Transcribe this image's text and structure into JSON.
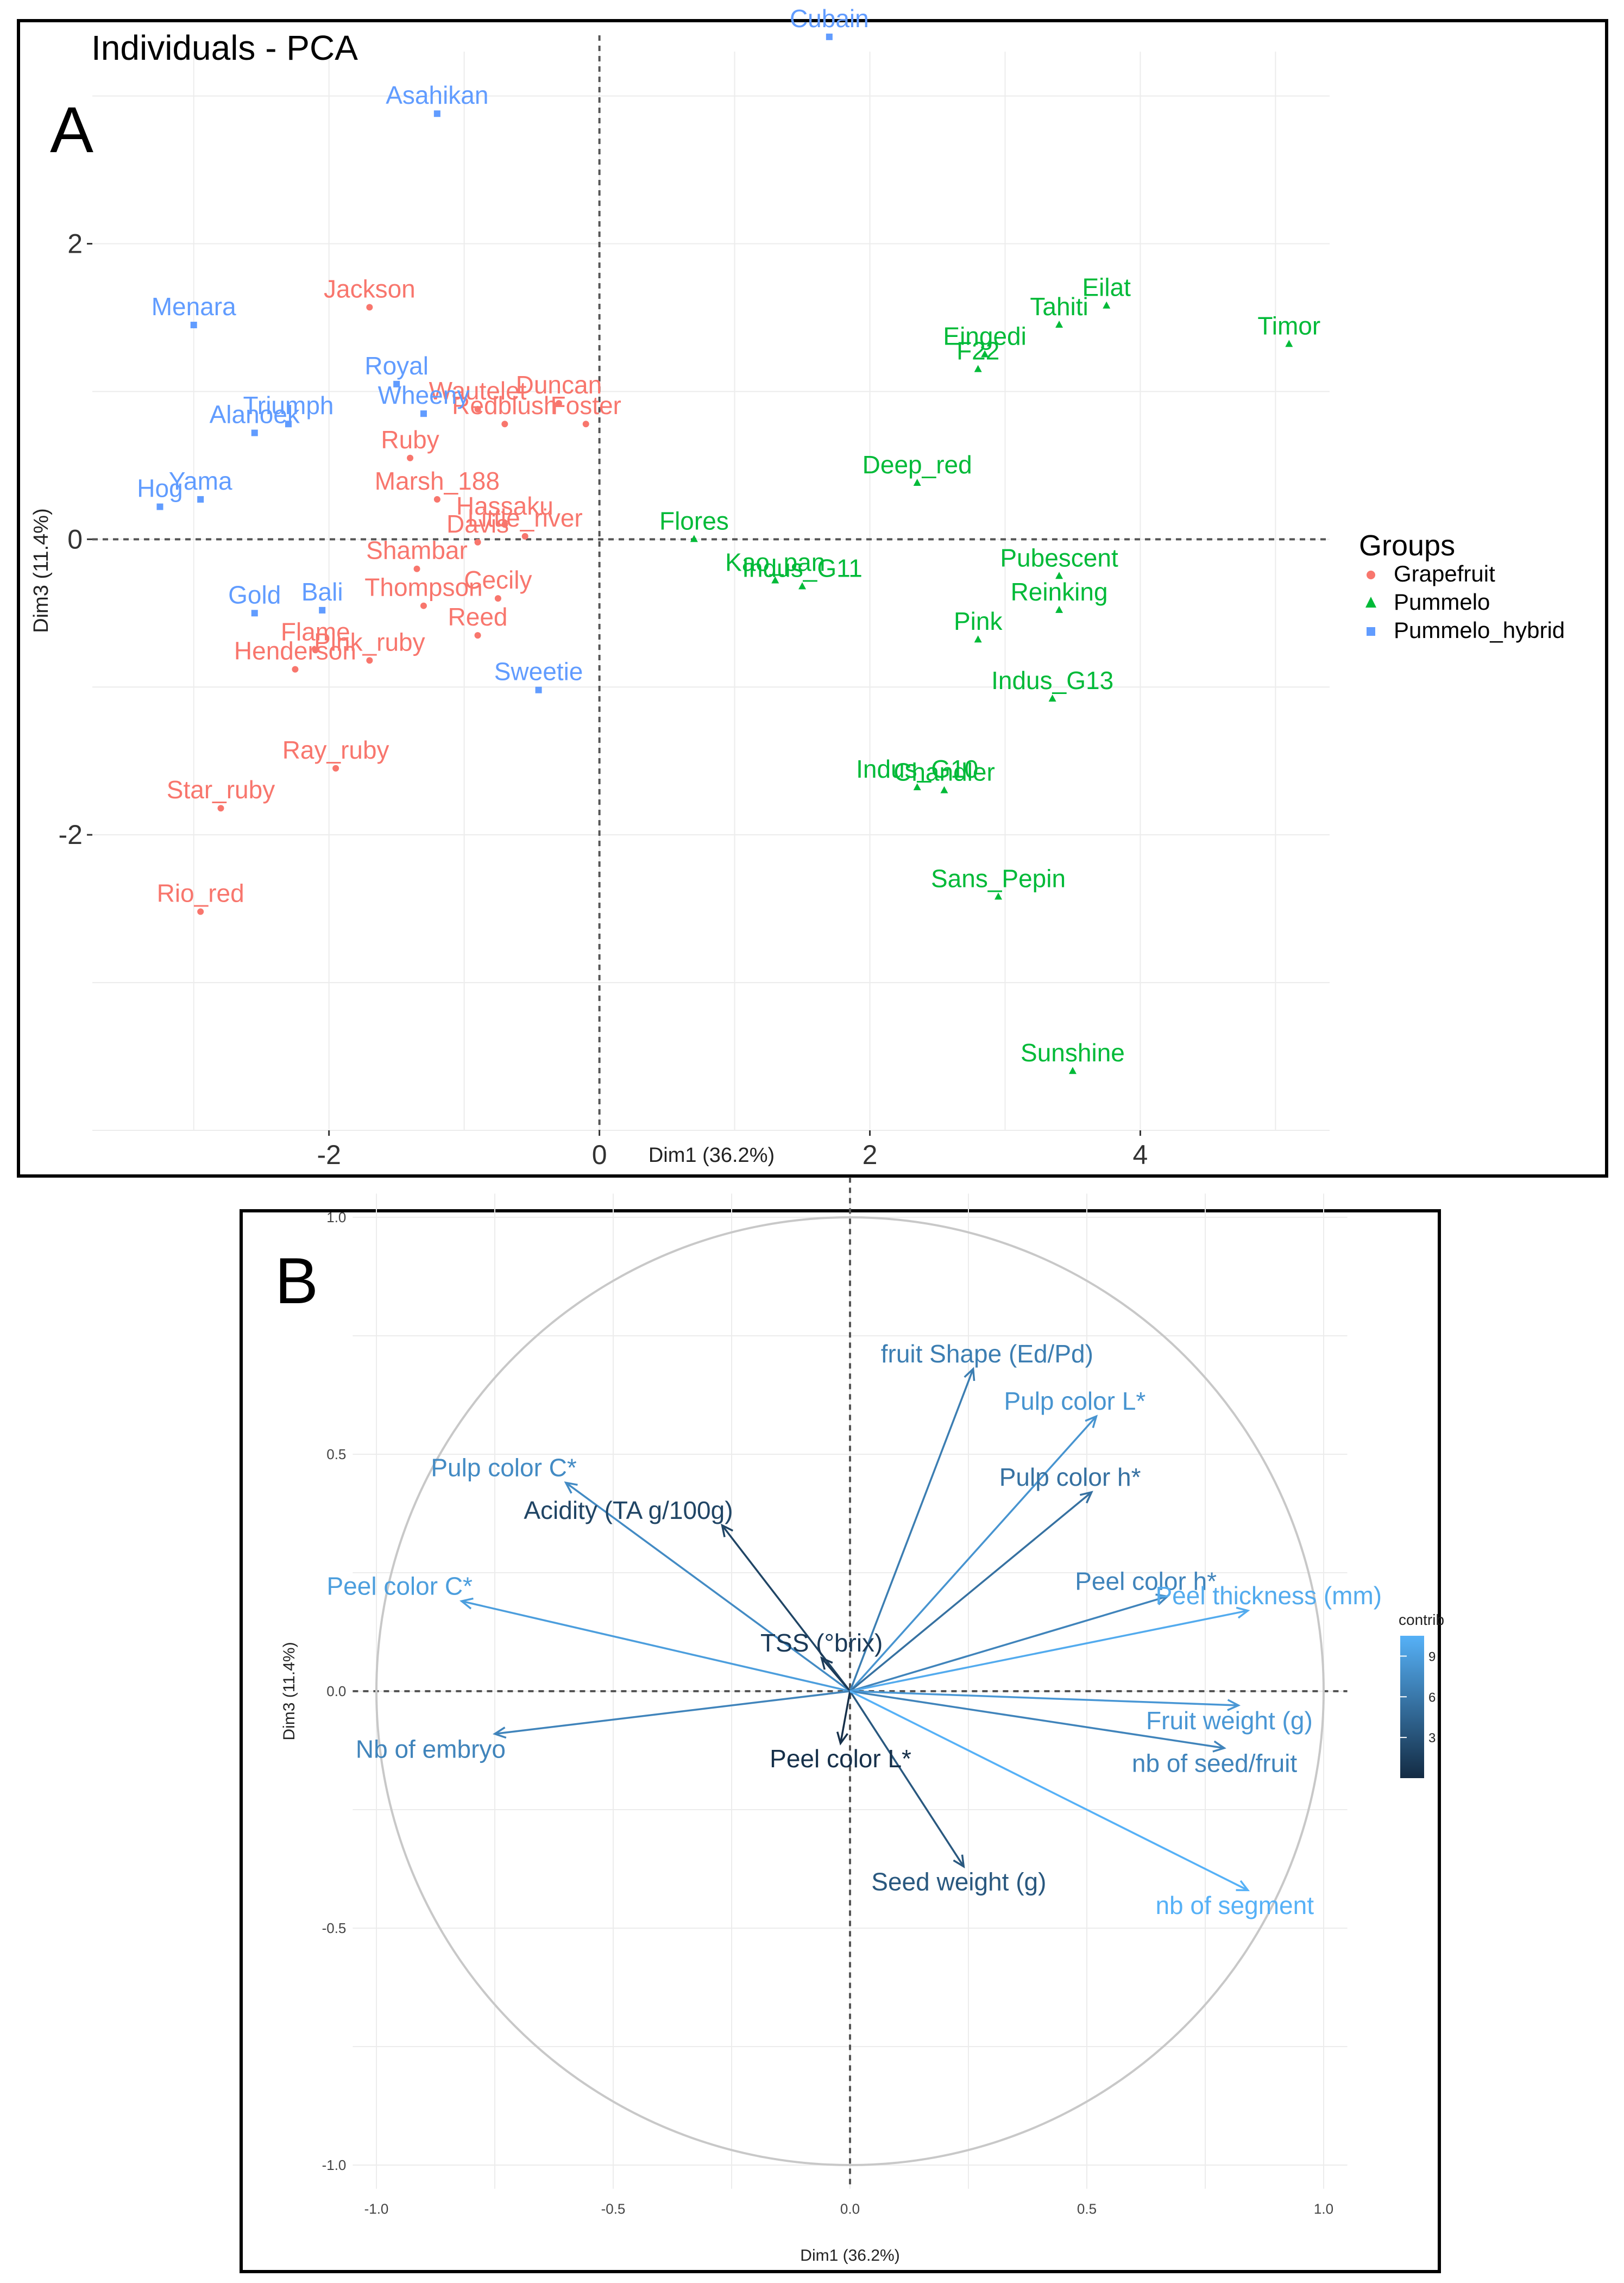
{
  "figure": {
    "panel_a_letter": "A",
    "panel_b_letter": "B"
  },
  "chart_data": [
    {
      "type": "scatter",
      "title": "Individuals - PCA",
      "xlabel": "Dim1 (36.2%)",
      "ylabel": "Dim3 (11.4%)",
      "xlim": [
        -3.75,
        5.4
      ],
      "ylim": [
        -4.0,
        3.3
      ],
      "xticks": [
        -2,
        0,
        2,
        4
      ],
      "yticks": [
        -2,
        0,
        2
      ],
      "grid": true,
      "legend": {
        "title": "Groups",
        "placement": "right",
        "entries": [
          {
            "name": "Grapefruit",
            "color": "#f8766d",
            "marker": "circle"
          },
          {
            "name": "Pummelo",
            "color": "#00ba38",
            "marker": "triangle"
          },
          {
            "name": "Pummelo_hybrid",
            "color": "#619cff",
            "marker": "square"
          }
        ]
      },
      "series": [
        {
          "name": "Grapefruit",
          "color": "#f8766d",
          "points": [
            {
              "label": "Jackson",
              "x": -1.7,
              "y": 1.57
            },
            {
              "label": "Wautelet",
              "x": -0.9,
              "y": 0.88
            },
            {
              "label": "Duncan",
              "x": -0.3,
              "y": 0.92
            },
            {
              "label": "Redblush",
              "x": -0.7,
              "y": 0.78
            },
            {
              "label": "Foster",
              "x": -0.1,
              "y": 0.78
            },
            {
              "label": "Ruby",
              "x": -1.4,
              "y": 0.55
            },
            {
              "label": "Hassaku",
              "x": -0.7,
              "y": 0.1
            },
            {
              "label": "Marsh_188",
              "x": -1.2,
              "y": 0.27
            },
            {
              "label": "Shambar",
              "x": -1.35,
              "y": -0.2
            },
            {
              "label": "Davis",
              "x": -0.9,
              "y": -0.02
            },
            {
              "label": "Little_river",
              "x": -0.55,
              "y": 0.02
            },
            {
              "label": "Cecily",
              "x": -0.75,
              "y": -0.4
            },
            {
              "label": "Thompson",
              "x": -1.3,
              "y": -0.45
            },
            {
              "label": "Flame",
              "x": -2.1,
              "y": -0.75
            },
            {
              "label": "Reed",
              "x": -0.9,
              "y": -0.65
            },
            {
              "label": "Henderson",
              "x": -2.25,
              "y": -0.88
            },
            {
              "label": "Pink_ruby",
              "x": -1.7,
              "y": -0.82
            },
            {
              "label": "Ray_ruby",
              "x": -1.95,
              "y": -1.55
            },
            {
              "label": "Star_ruby",
              "x": -2.8,
              "y": -1.82
            },
            {
              "label": "Rio_red",
              "x": -2.95,
              "y": -2.52
            }
          ]
        },
        {
          "name": "Pummelo",
          "color": "#00ba38",
          "points": [
            {
              "label": "Tahiti",
              "x": 3.4,
              "y": 1.45
            },
            {
              "label": "Eilat",
              "x": 3.75,
              "y": 1.58
            },
            {
              "label": "Eingedi",
              "x": 2.85,
              "y": 1.25
            },
            {
              "label": "F22",
              "x": 2.8,
              "y": 1.15
            },
            {
              "label": "Timor",
              "x": 5.1,
              "y": 1.32
            },
            {
              "label": "Deep_red",
              "x": 2.35,
              "y": 0.38
            },
            {
              "label": "Flores",
              "x": 0.7,
              "y": 0.0
            },
            {
              "label": "Kao_pan",
              "x": 1.3,
              "y": -0.28
            },
            {
              "label": "Indus_G11",
              "x": 1.5,
              "y": -0.32
            },
            {
              "label": "Pubescent",
              "x": 3.4,
              "y": -0.25
            },
            {
              "label": "Reinking",
              "x": 3.4,
              "y": -0.48
            },
            {
              "label": "Pink",
              "x": 2.8,
              "y": -0.68
            },
            {
              "label": "Indus_G13",
              "x": 3.35,
              "y": -1.08
            },
            {
              "label": "Indus_G10",
              "x": 2.35,
              "y": -1.68
            },
            {
              "label": "Chandler",
              "x": 2.55,
              "y": -1.7
            },
            {
              "label": "Sans_Pepin",
              "x": 2.95,
              "y": -2.42
            },
            {
              "label": "Sunshine",
              "x": 3.5,
              "y": -3.6
            }
          ]
        },
        {
          "name": "Pummelo_hybrid",
          "color": "#619cff",
          "points": [
            {
              "label": "Cubain",
              "x": 1.7,
              "y": 3.4
            },
            {
              "label": "Asahikan",
              "x": -1.2,
              "y": 2.88
            },
            {
              "label": "Menara",
              "x": -3.0,
              "y": 1.45
            },
            {
              "label": "Royal",
              "x": -1.5,
              "y": 1.05
            },
            {
              "label": "Triumph",
              "x": -2.3,
              "y": 0.78
            },
            {
              "label": "Wheeny",
              "x": -1.3,
              "y": 0.85
            },
            {
              "label": "Alanoek",
              "x": -2.55,
              "y": 0.72
            },
            {
              "label": "Yama",
              "x": -2.95,
              "y": 0.27
            },
            {
              "label": "Hog",
              "x": -3.25,
              "y": 0.22
            },
            {
              "label": "Gold",
              "x": -2.55,
              "y": -0.5
            },
            {
              "label": "Bali",
              "x": -2.05,
              "y": -0.48
            },
            {
              "label": "Sweetie",
              "x": -0.45,
              "y": -1.02
            }
          ]
        }
      ]
    },
    {
      "type": "scatter",
      "subtype": "variable-correlation-circle",
      "title": "",
      "xlabel": "Dim1 (36.2%)",
      "ylabel": "Dim3 (11.4%)",
      "xlim": [
        -1.05,
        1.05
      ],
      "ylim": [
        -1.05,
        1.05
      ],
      "xticks": [
        -1.0,
        -0.5,
        0.0,
        0.5,
        1.0
      ],
      "yticks": [
        -1.0,
        -0.5,
        0.0,
        0.5,
        1.0
      ],
      "grid": true,
      "colorbar": {
        "title": "contrib",
        "ticks": [
          3,
          6,
          9
        ],
        "range": [
          0,
          10.5
        ],
        "color_low": "#132b43",
        "color_high": "#56b1f7"
      },
      "arrows": [
        {
          "label": "fruit Shape (Ed/Pd)",
          "x": 0.26,
          "y": 0.68,
          "contrib": 6.5
        },
        {
          "label": "Pulp color L*",
          "x": 0.52,
          "y": 0.58,
          "contrib": 8.2
        },
        {
          "label": "Pulp color C*",
          "x": -0.6,
          "y": 0.44,
          "contrib": 7.5
        },
        {
          "label": "Acidity (TA g/100g)",
          "x": -0.27,
          "y": 0.35,
          "contrib": 2.0
        },
        {
          "label": "Pulp color h*",
          "x": 0.51,
          "y": 0.42,
          "contrib": 5.5
        },
        {
          "label": "Peel color C*",
          "x": -0.82,
          "y": 0.19,
          "contrib": 9.0
        },
        {
          "label": "Peel color h*",
          "x": 0.67,
          "y": 0.2,
          "contrib": 7.0
        },
        {
          "label": "TSS (°brix)",
          "x": -0.06,
          "y": 0.07,
          "contrib": 1.2
        },
        {
          "label": "Peel thickness (mm)",
          "x": 0.84,
          "y": 0.17,
          "contrib": 10.0
        },
        {
          "label": "Fruit weight (g)",
          "x": 0.82,
          "y": -0.03,
          "contrib": 8.5
        },
        {
          "label": "nb of seed/fruit",
          "x": 0.79,
          "y": -0.12,
          "contrib": 7.0
        },
        {
          "label": "Nb of embryo",
          "x": -0.75,
          "y": -0.09,
          "contrib": 7.0
        },
        {
          "label": "Peel color L*",
          "x": -0.02,
          "y": -0.11,
          "contrib": 0.4
        },
        {
          "label": "Seed weight (g)",
          "x": 0.24,
          "y": -0.37,
          "contrib": 3.5
        },
        {
          "label": "nb of segment",
          "x": 0.84,
          "y": -0.42,
          "contrib": 10.5
        }
      ]
    }
  ]
}
